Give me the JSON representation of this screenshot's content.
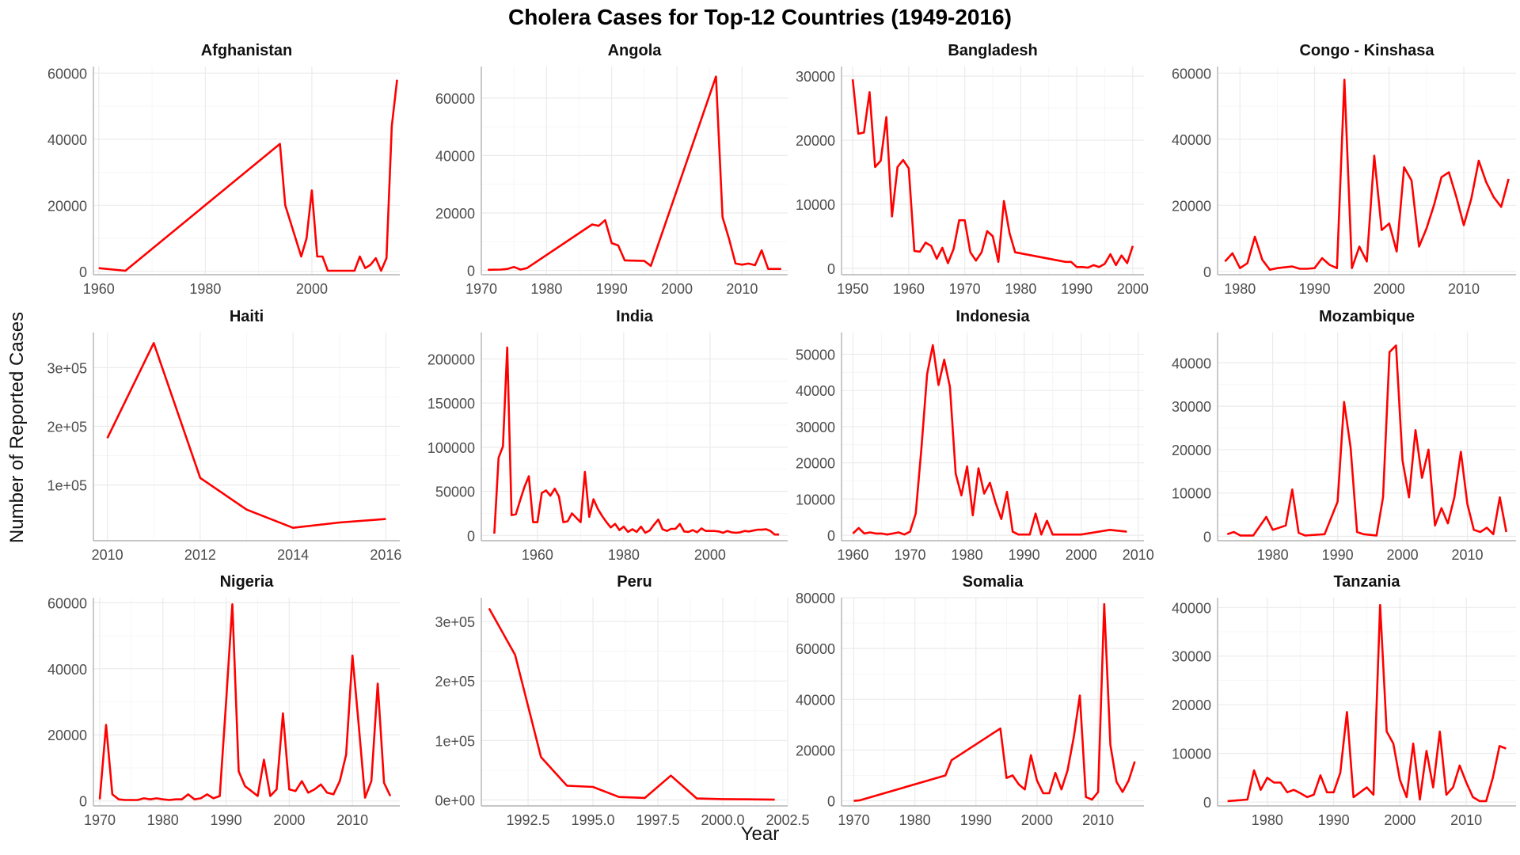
{
  "figure": {
    "title": "Cholera Cases for Top-12 Countries (1949-2016)",
    "xlabel": "Year",
    "ylabel": "Number of Reported Cases",
    "line_color": "#ff0000"
  },
  "chart_data": [
    {
      "type": "line",
      "title": "Afghanistan",
      "xlim": [
        1959,
        2016.5
      ],
      "ylim": [
        -1000,
        62000
      ],
      "xticks": [
        1960,
        1980,
        2000
      ],
      "xtick_labels": [
        "1960",
        "1980",
        "2000"
      ],
      "yticks": [
        0,
        20000,
        40000,
        60000
      ],
      "ytick_labels": [
        "0",
        "20000",
        "40000",
        "60000"
      ],
      "x": [
        1960,
        1965,
        1994,
        1995,
        1998,
        1999,
        2000,
        2001,
        2002,
        2003,
        2005,
        2008,
        2009,
        2010,
        2011,
        2012,
        2013,
        2014,
        2015,
        2016
      ],
      "y": [
        1000,
        200,
        38600,
        20000,
        4500,
        10000,
        24500,
        4500,
        4500,
        200,
        200,
        200,
        4500,
        1000,
        2000,
        4000,
        200,
        4000,
        44000,
        58000
      ]
    },
    {
      "type": "line",
      "title": "Angola",
      "xlim": [
        1970,
        2017
      ],
      "ylim": [
        -1500,
        71000
      ],
      "xticks": [
        1970,
        1980,
        1990,
        2000,
        2010
      ],
      "xtick_labels": [
        "1970",
        "1980",
        "1990",
        "2000",
        "2010"
      ],
      "yticks": [
        0,
        20000,
        40000,
        60000
      ],
      "ytick_labels": [
        "0",
        "20000",
        "40000",
        "60000"
      ],
      "x": [
        1971,
        1973,
        1974,
        1975,
        1976,
        1977,
        1987,
        1988,
        1989,
        1990,
        1991,
        1992,
        1995,
        1996,
        2006,
        2007,
        2008,
        2009,
        2010,
        2011,
        2012,
        2013,
        2014,
        2016
      ],
      "y": [
        200,
        300,
        500,
        1200,
        300,
        800,
        16000,
        15500,
        17500,
        9500,
        8700,
        3500,
        3300,
        1600,
        67500,
        18500,
        11000,
        2400,
        2000,
        2400,
        1800,
        7000,
        500,
        500
      ]
    },
    {
      "type": "line",
      "title": "Bangladesh",
      "xlim": [
        1948,
        2002
      ],
      "ylim": [
        -1000,
        31500
      ],
      "xticks": [
        1950,
        1960,
        1970,
        1980,
        1990,
        2000
      ],
      "xtick_labels": [
        "1950",
        "1960",
        "1970",
        "1980",
        "1990",
        "2000"
      ],
      "yticks": [
        0,
        10000,
        20000,
        30000
      ],
      "ytick_labels": [
        "0",
        "10000",
        "20000",
        "30000"
      ],
      "x": [
        1950,
        1951,
        1952,
        1953,
        1954,
        1955,
        1956,
        1957,
        1958,
        1959,
        1960,
        1961,
        1962,
        1963,
        1964,
        1965,
        1966,
        1967,
        1968,
        1969,
        1970,
        1971,
        1972,
        1973,
        1974,
        1975,
        1976,
        1977,
        1978,
        1979,
        1988,
        1989,
        1990,
        1991,
        1992,
        1993,
        1994,
        1995,
        1996,
        1997,
        1998,
        1999,
        2000
      ],
      "y": [
        29500,
        21000,
        21200,
        27500,
        15800,
        16800,
        23600,
        8100,
        15800,
        16900,
        15600,
        2700,
        2600,
        4000,
        3500,
        1500,
        3200,
        800,
        3000,
        7500,
        7500,
        2500,
        1200,
        2500,
        5800,
        5000,
        1000,
        10500,
        5500,
        2500,
        1000,
        1000,
        200,
        200,
        100,
        500,
        200,
        700,
        2200,
        500,
        2000,
        800,
        3500
      ]
    },
    {
      "type": "line",
      "title": "Congo - Kinshasa",
      "xlim": [
        1977,
        2017
      ],
      "ylim": [
        -1000,
        62000
      ],
      "xticks": [
        1980,
        1990,
        2000,
        2010
      ],
      "xtick_labels": [
        "1980",
        "1990",
        "2000",
        "2010"
      ],
      "yticks": [
        0,
        20000,
        40000,
        60000
      ],
      "ytick_labels": [
        "0",
        "20000",
        "40000",
        "60000"
      ],
      "x": [
        1978,
        1979,
        1980,
        1981,
        1982,
        1983,
        1984,
        1985,
        1987,
        1988,
        1989,
        1990,
        1991,
        1992,
        1993,
        1994,
        1995,
        1996,
        1997,
        1998,
        1999,
        2000,
        2001,
        2002,
        2003,
        2004,
        2005,
        2006,
        2007,
        2008,
        2009,
        2010,
        2011,
        2012,
        2013,
        2014,
        2015,
        2016
      ],
      "y": [
        3000,
        5500,
        1000,
        2500,
        10500,
        3500,
        500,
        1000,
        1500,
        800,
        800,
        1000,
        4000,
        2000,
        1000,
        58000,
        1000,
        7500,
        3000,
        35000,
        12500,
        14500,
        6000,
        31500,
        27500,
        7500,
        13000,
        20000,
        28500,
        30000,
        22500,
        14000,
        22000,
        33500,
        27000,
        22500,
        19500,
        28000
      ]
    },
    {
      "type": "line",
      "title": "Haiti",
      "xlim": [
        2009.7,
        2016.3
      ],
      "ylim": [
        5000,
        360000
      ],
      "xticks": [
        2010,
        2012,
        2014,
        2016
      ],
      "xtick_labels": [
        "2010",
        "2012",
        "2014",
        "2016"
      ],
      "yticks": [
        100000,
        200000,
        300000
      ],
      "ytick_labels": [
        "1e+05",
        "2e+05",
        "3e+05"
      ],
      "x": [
        2010,
        2011,
        2012,
        2013,
        2014,
        2015,
        2016
      ],
      "y": [
        180000,
        342000,
        112000,
        58000,
        27000,
        36000,
        42000
      ]
    },
    {
      "type": "line",
      "title": "India",
      "xlim": [
        1947,
        2018
      ],
      "ylim": [
        -6000,
        230000
      ],
      "xticks": [
        1960,
        1980,
        2000
      ],
      "xtick_labels": [
        "1960",
        "1980",
        "2000"
      ],
      "yticks": [
        0,
        50000,
        100000,
        150000,
        200000
      ],
      "ytick_labels": [
        "0",
        "50000",
        "100000",
        "150000",
        "200000"
      ],
      "x": [
        1950,
        1951,
        1952,
        1953,
        1954,
        1955,
        1956,
        1957,
        1958,
        1959,
        1960,
        1961,
        1962,
        1963,
        1964,
        1965,
        1966,
        1967,
        1968,
        1969,
        1970,
        1971,
        1972,
        1973,
        1974,
        1975,
        1976,
        1977,
        1978,
        1979,
        1980,
        1981,
        1982,
        1983,
        1984,
        1985,
        1986,
        1987,
        1988,
        1989,
        1990,
        1991,
        1992,
        1993,
        1994,
        1995,
        1996,
        1997,
        1998,
        1999,
        2000,
        2001,
        2002,
        2003,
        2004,
        2005,
        2006,
        2007,
        2008,
        2009,
        2010,
        2011,
        2012,
        2013,
        2014,
        2015,
        2016
      ],
      "y": [
        2000,
        88000,
        101000,
        213000,
        23000,
        24000,
        40000,
        55000,
        67000,
        15000,
        15000,
        48000,
        51000,
        45000,
        53000,
        44000,
        15000,
        16000,
        25000,
        20000,
        15000,
        72000,
        21000,
        41000,
        30000,
        22000,
        15000,
        9000,
        13000,
        6000,
        10000,
        4000,
        7000,
        4000,
        10000,
        3000,
        5500,
        12000,
        18000,
        7000,
        5000,
        7500,
        7500,
        13000,
        4500,
        4000,
        6000,
        3500,
        8000,
        5000,
        5000,
        5000,
        4500,
        3000,
        5000,
        3500,
        3000,
        3500,
        5000,
        4500,
        5500,
        6500,
        6500,
        7000,
        5000,
        1000,
        1000
      ]
    },
    {
      "type": "line",
      "title": "Indonesia",
      "xlim": [
        1958,
        2011
      ],
      "ylim": [
        -1500,
        56000
      ],
      "xticks": [
        1960,
        1970,
        1980,
        1990,
        2000,
        2010
      ],
      "xtick_labels": [
        "1960",
        "1970",
        "1980",
        "1990",
        "2000",
        "2010"
      ],
      "yticks": [
        0,
        10000,
        20000,
        30000,
        40000,
        50000
      ],
      "ytick_labels": [
        "0",
        "10000",
        "20000",
        "30000",
        "40000",
        "50000"
      ],
      "x": [
        1960,
        1961,
        1962,
        1963,
        1964,
        1965,
        1966,
        1967,
        1968,
        1969,
        1970,
        1971,
        1972,
        1973,
        1974,
        1975,
        1976,
        1977,
        1978,
        1979,
        1980,
        1981,
        1982,
        1983,
        1984,
        1985,
        1986,
        1987,
        1988,
        1989,
        1990,
        1991,
        1992,
        1993,
        1994,
        1995,
        2000,
        2005,
        2008
      ],
      "y": [
        500,
        2000,
        500,
        800,
        500,
        500,
        200,
        500,
        800,
        200,
        1000,
        6000,
        24000,
        44500,
        52500,
        41500,
        48500,
        41000,
        17000,
        11000,
        19000,
        5500,
        18500,
        11500,
        14500,
        9000,
        4500,
        12000,
        1000,
        200,
        200,
        200,
        6000,
        200,
        4000,
        200,
        200,
        1500,
        1000
      ]
    },
    {
      "type": "line",
      "title": "Mozambique",
      "xlim": [
        1971.5,
        2017.5
      ],
      "ylim": [
        -1000,
        47000
      ],
      "xticks": [
        1980,
        1990,
        2000,
        2010
      ],
      "xtick_labels": [
        "1980",
        "1990",
        "2000",
        "2010"
      ],
      "yticks": [
        0,
        10000,
        20000,
        30000,
        40000
      ],
      "ytick_labels": [
        "0",
        "10000",
        "20000",
        "30000",
        "40000"
      ],
      "x": [
        1973,
        1974,
        1975,
        1977,
        1979,
        1980,
        1982,
        1983,
        1984,
        1985,
        1988,
        1990,
        1991,
        1992,
        1993,
        1994,
        1996,
        1997,
        1998,
        1999,
        2000,
        2001,
        2002,
        2003,
        2004,
        2005,
        2006,
        2007,
        2008,
        2009,
        2010,
        2011,
        2012,
        2013,
        2014,
        2015,
        2016
      ],
      "y": [
        500,
        1000,
        200,
        200,
        4500,
        1500,
        2500,
        10800,
        800,
        200,
        500,
        8000,
        31000,
        20500,
        1000,
        500,
        200,
        9000,
        42500,
        44000,
        17500,
        9000,
        24500,
        13500,
        20000,
        2500,
        6500,
        3000,
        9000,
        19500,
        7500,
        1500,
        1000,
        2000,
        500,
        9000,
        1000
      ]
    },
    {
      "type": "line",
      "title": "Nigeria",
      "xlim": [
        1969,
        2017.5
      ],
      "ylim": [
        -1500,
        61500
      ],
      "xticks": [
        1970,
        1980,
        1990,
        2000,
        2010
      ],
      "xtick_labels": [
        "1970",
        "1980",
        "1990",
        "2000",
        "2010"
      ],
      "yticks": [
        0,
        20000,
        40000,
        60000
      ],
      "ytick_labels": [
        "0",
        "20000",
        "40000",
        "60000"
      ],
      "x": [
        1970,
        1971,
        1972,
        1973,
        1974,
        1975,
        1976,
        1977,
        1978,
        1979,
        1980,
        1981,
        1982,
        1983,
        1984,
        1985,
        1986,
        1987,
        1988,
        1989,
        1990,
        1991,
        1992,
        1993,
        1994,
        1995,
        1996,
        1997,
        1998,
        1999,
        2000,
        2001,
        2002,
        2003,
        2004,
        2005,
        2006,
        2007,
        2008,
        2009,
        2010,
        2011,
        2012,
        2013,
        2014,
        2015,
        2016
      ],
      "y": [
        500,
        23000,
        2000,
        500,
        300,
        300,
        300,
        800,
        500,
        800,
        500,
        300,
        500,
        500,
        2000,
        500,
        800,
        2000,
        800,
        1500,
        30000,
        59500,
        9000,
        4500,
        3000,
        1500,
        12500,
        1500,
        3500,
        26500,
        3500,
        3000,
        6000,
        2500,
        3500,
        5000,
        2500,
        2000,
        6000,
        14000,
        44000,
        23000,
        1000,
        6000,
        35500,
        5500,
        1500
      ]
    },
    {
      "type": "line",
      "title": "Peru",
      "xlim": [
        1990.7,
        2002.5
      ],
      "ylim": [
        -10000,
        340000
      ],
      "xticks": [
        1992.5,
        1995.0,
        1997.5,
        2000.0,
        2002.5
      ],
      "xtick_labels": [
        "1992.5",
        "1995.0",
        "1997.5",
        "2000.0",
        "2002.5"
      ],
      "yticks": [
        0,
        100000,
        200000,
        300000
      ],
      "ytick_labels": [
        "0e+00",
        "1e+05",
        "2e+05",
        "3e+05"
      ],
      "x": [
        1991,
        1992,
        1993,
        1994,
        1995,
        1996,
        1997,
        1998,
        1999,
        2000,
        2001,
        2002
      ],
      "y": [
        322000,
        244000,
        72000,
        24000,
        22000,
        5000,
        3500,
        41000,
        2500,
        1500,
        1000,
        500
      ]
    },
    {
      "type": "line",
      "title": "Somalia",
      "xlim": [
        1968,
        2017.5
      ],
      "ylim": [
        -2000,
        80000
      ],
      "xticks": [
        1970,
        1980,
        1990,
        2000,
        2010
      ],
      "xtick_labels": [
        "1970",
        "1980",
        "1990",
        "2000",
        "2010"
      ],
      "yticks": [
        0,
        20000,
        40000,
        60000,
        80000
      ],
      "ytick_labels": [
        "0",
        "20000",
        "40000",
        "60000",
        "80000"
      ],
      "x": [
        1970,
        1971,
        1985,
        1986,
        1994,
        1995,
        1996,
        1997,
        1998,
        1999,
        2000,
        2001,
        2002,
        2003,
        2004,
        2005,
        2006,
        2007,
        2008,
        2009,
        2010,
        2011,
        2012,
        2013,
        2014,
        2015,
        2016
      ],
      "y": [
        0,
        200,
        10000,
        16000,
        28500,
        9000,
        10000,
        6500,
        4500,
        18000,
        8000,
        3000,
        3000,
        11000,
        4500,
        12000,
        25000,
        41500,
        1500,
        500,
        3500,
        77500,
        22000,
        7500,
        3500,
        8000,
        15500
      ]
    },
    {
      "type": "line",
      "title": "Tanzania",
      "xlim": [
        1972.5,
        2017.5
      ],
      "ylim": [
        -800,
        42000
      ],
      "xticks": [
        1980,
        1990,
        2000,
        2010
      ],
      "xtick_labels": [
        "1980",
        "1990",
        "2000",
        "2010"
      ],
      "yticks": [
        0,
        10000,
        20000,
        30000,
        40000
      ],
      "ytick_labels": [
        "0",
        "10000",
        "20000",
        "30000",
        "40000"
      ],
      "x": [
        1974,
        1977,
        1978,
        1979,
        1980,
        1981,
        1982,
        1983,
        1984,
        1985,
        1986,
        1987,
        1988,
        1989,
        1990,
        1991,
        1992,
        1993,
        1994,
        1995,
        1996,
        1997,
        1998,
        1999,
        2000,
        2001,
        2002,
        2003,
        2004,
        2005,
        2006,
        2007,
        2008,
        2009,
        2010,
        2011,
        2012,
        2013,
        2014,
        2015,
        2016
      ],
      "y": [
        200,
        500,
        6500,
        2500,
        5000,
        4000,
        4000,
        2000,
        2500,
        1800,
        1000,
        1500,
        5500,
        2000,
        2000,
        6000,
        18500,
        1000,
        2000,
        3000,
        1500,
        40500,
        14500,
        12000,
        4500,
        1000,
        12000,
        500,
        10500,
        3000,
        14500,
        1500,
        3000,
        7500,
        4000,
        1000,
        200,
        200,
        5000,
        11500,
        11000
      ]
    }
  ]
}
